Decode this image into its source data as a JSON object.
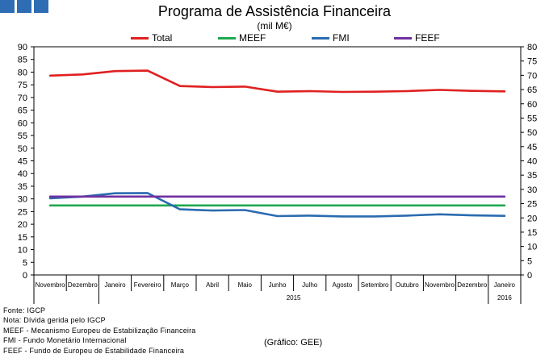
{
  "header": {
    "title": "Programa de Assistência Financeira",
    "subtitle": "(mil M€)"
  },
  "notes": [
    "Fonte: IGCP",
    "Nota: Dívida gerida pelo IGCP",
    "MEEF - Mecanismo Europeu de Estabilização Financeira",
    "FMI - Fundo Monetário Internacional",
    "FEEF - Fundo de Europeu de Estabilidade Financeira"
  ],
  "credit": "(Gráfico: GEE)",
  "chart_data": {
    "type": "line",
    "categories": [
      "Novembro",
      "Dezembro",
      "Janeiro",
      "Fevereiro",
      "Março",
      "Abril",
      "Maio",
      "Junho",
      "Julho",
      "Agosto",
      "Setembro",
      "Outubro",
      "Novembro",
      "Dezembro",
      "Janeiro"
    ],
    "year_labels": [
      {
        "label": "2015",
        "from": 2,
        "to": 13
      },
      {
        "label": "2016",
        "from": 14,
        "to": 14
      }
    ],
    "ylim": [
      0,
      90
    ],
    "y_ticks": [
      0,
      5,
      10,
      15,
      20,
      25,
      30,
      35,
      40,
      45,
      50,
      55,
      60,
      65,
      70,
      75,
      80,
      85,
      90
    ],
    "y2lim": [
      0,
      80
    ],
    "y2_ticks": [
      0,
      5,
      10,
      15,
      20,
      25,
      30,
      35,
      40,
      45,
      50,
      55,
      60,
      65,
      70,
      75,
      80
    ],
    "grid": false,
    "legend_position": "top",
    "series": [
      {
        "name": "Total",
        "color": "#e02020",
        "values": [
          78.6,
          79.1,
          80.4,
          80.6,
          74.5,
          74.1,
          74.3,
          72.3,
          72.5,
          72.2,
          72.3,
          72.5,
          73.0,
          72.6,
          72.4
        ]
      },
      {
        "name": "MEEF",
        "color": "#1fa84f",
        "values": [
          27.4,
          27.4,
          27.4,
          27.4,
          27.4,
          27.4,
          27.4,
          27.4,
          27.4,
          27.4,
          27.4,
          27.4,
          27.4,
          27.4,
          27.4
        ]
      },
      {
        "name": "FMI",
        "color": "#2a6bb0",
        "values": [
          30.2,
          30.9,
          32.2,
          32.3,
          25.9,
          25.4,
          25.6,
          23.2,
          23.4,
          23.1,
          23.1,
          23.4,
          23.9,
          23.5,
          23.3
        ]
      },
      {
        "name": "FEEF",
        "color": "#7030a0",
        "values": [
          30.9,
          30.9,
          30.9,
          30.9,
          30.9,
          30.9,
          30.9,
          30.9,
          30.9,
          30.9,
          30.9,
          30.9,
          30.9,
          30.9,
          30.9
        ]
      }
    ]
  }
}
